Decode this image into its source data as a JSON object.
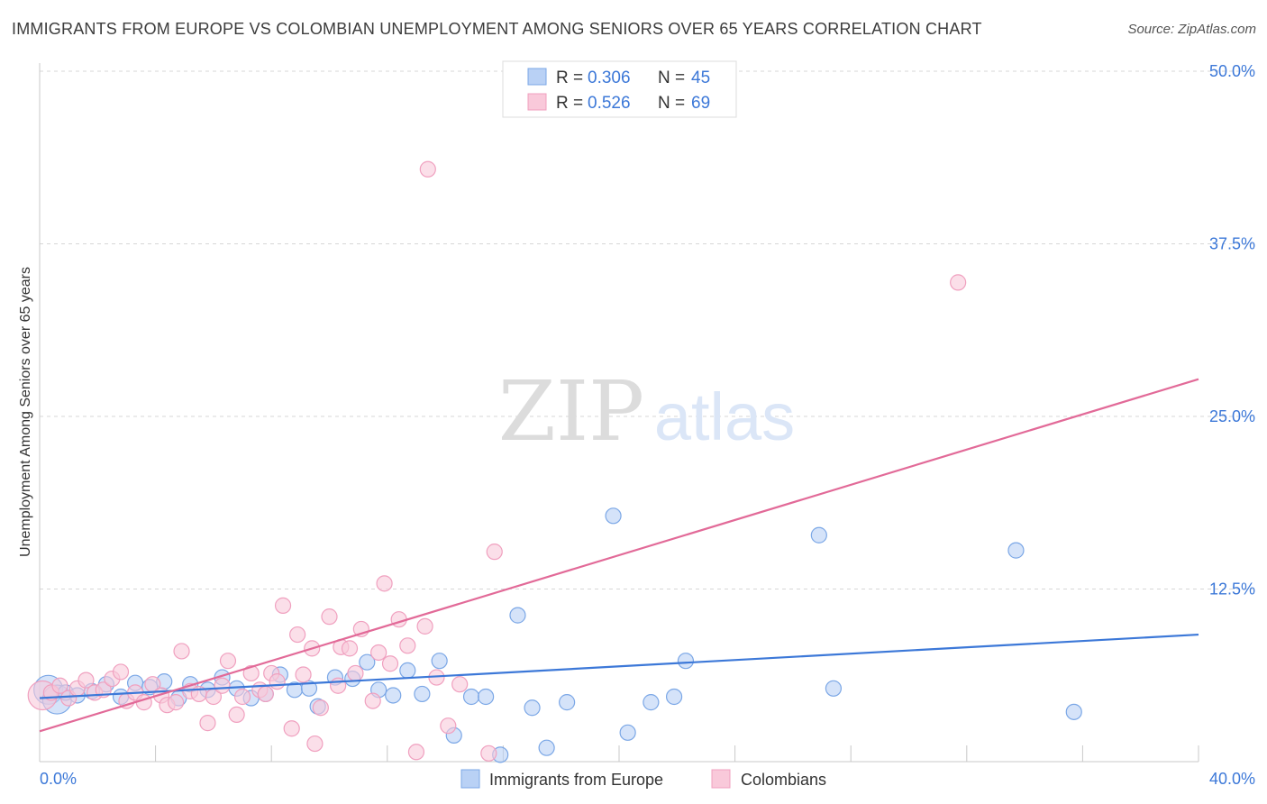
{
  "header": {
    "title": "IMMIGRANTS FROM EUROPE VS COLOMBIAN UNEMPLOYMENT AMONG SENIORS OVER 65 YEARS CORRELATION CHART",
    "source": "Source: ZipAtlas.com"
  },
  "watermark": {
    "zip": "ZIP",
    "atlas": "atlas"
  },
  "chart_data": {
    "type": "scatter",
    "title": "IMMIGRANTS FROM EUROPE VS COLOMBIAN UNEMPLOYMENT AMONG SENIORS OVER 65 YEARS CORRELATION CHART",
    "xlabel": "",
    "ylabel": "Unemployment Among Seniors over 65 years",
    "xlim": [
      0,
      40
    ],
    "ylim": [
      0,
      51
    ],
    "x_tick_labels": [
      {
        "value": 0,
        "label": "0.0%"
      },
      {
        "value": 40,
        "label": "40.0%"
      }
    ],
    "y_tick_labels": [
      {
        "value": 12.5,
        "label": "12.5%"
      },
      {
        "value": 25,
        "label": "25.0%"
      },
      {
        "value": 37.5,
        "label": "37.5%"
      },
      {
        "value": 50,
        "label": "50.0%"
      }
    ],
    "grid": true,
    "legend": {
      "position": "top-center",
      "r_label": "R =",
      "n_label": "N =",
      "entries": [
        {
          "r": "0.306",
          "n": "45"
        },
        {
          "r": "0.526",
          "n": "69"
        }
      ]
    },
    "series": [
      {
        "name": "Immigrants from Europe",
        "color": "#7ba7e6",
        "fill": "#b9d1f5",
        "line_color": "#3c78d8",
        "trend": {
          "x": [
            0,
            40
          ],
          "y": [
            4.6,
            9.2
          ]
        },
        "points": [
          {
            "x": 0.3,
            "y": 5.2,
            "s": "lg"
          },
          {
            "x": 0.6,
            "y": 4.5,
            "s": "lg"
          },
          {
            "x": 0.9,
            "y": 5.0
          },
          {
            "x": 1.3,
            "y": 4.8
          },
          {
            "x": 1.8,
            "y": 5.1
          },
          {
            "x": 2.3,
            "y": 5.6
          },
          {
            "x": 2.8,
            "y": 4.7
          },
          {
            "x": 3.3,
            "y": 5.7
          },
          {
            "x": 3.8,
            "y": 5.4
          },
          {
            "x": 4.3,
            "y": 5.8
          },
          {
            "x": 4.8,
            "y": 4.6
          },
          {
            "x": 5.2,
            "y": 5.6
          },
          {
            "x": 5.8,
            "y": 5.2
          },
          {
            "x": 6.3,
            "y": 6.1
          },
          {
            "x": 6.8,
            "y": 5.3
          },
          {
            "x": 7.3,
            "y": 4.6
          },
          {
            "x": 7.8,
            "y": 4.9
          },
          {
            "x": 8.3,
            "y": 6.3
          },
          {
            "x": 8.8,
            "y": 5.2
          },
          {
            "x": 9.3,
            "y": 5.3
          },
          {
            "x": 9.6,
            "y": 4.0
          },
          {
            "x": 10.2,
            "y": 6.1
          },
          {
            "x": 10.8,
            "y": 6.0
          },
          {
            "x": 11.3,
            "y": 7.2
          },
          {
            "x": 11.7,
            "y": 5.2
          },
          {
            "x": 12.2,
            "y": 4.8
          },
          {
            "x": 12.7,
            "y": 6.6
          },
          {
            "x": 13.2,
            "y": 4.9
          },
          {
            "x": 13.8,
            "y": 7.3
          },
          {
            "x": 14.3,
            "y": 1.9
          },
          {
            "x": 14.9,
            "y": 4.7
          },
          {
            "x": 15.4,
            "y": 4.7
          },
          {
            "x": 15.9,
            "y": 0.5
          },
          {
            "x": 16.5,
            "y": 10.6
          },
          {
            "x": 17.0,
            "y": 3.9
          },
          {
            "x": 17.5,
            "y": 1.0
          },
          {
            "x": 18.2,
            "y": 4.3
          },
          {
            "x": 19.8,
            "y": 17.8
          },
          {
            "x": 20.3,
            "y": 2.1
          },
          {
            "x": 21.1,
            "y": 4.3
          },
          {
            "x": 21.9,
            "y": 4.7
          },
          {
            "x": 22.3,
            "y": 7.3
          },
          {
            "x": 26.9,
            "y": 16.4
          },
          {
            "x": 27.4,
            "y": 5.3
          },
          {
            "x": 33.7,
            "y": 15.3
          },
          {
            "x": 35.7,
            "y": 3.6
          }
        ]
      },
      {
        "name": "Colombians",
        "color": "#f0a0bf",
        "fill": "#f9c9da",
        "line_color": "#e26a98",
        "trend": {
          "x": [
            0,
            40
          ],
          "y": [
            2.2,
            27.7
          ]
        },
        "points": [
          {
            "x": 0.1,
            "y": 4.8,
            "s": "lg"
          },
          {
            "x": 0.4,
            "y": 5.0
          },
          {
            "x": 0.7,
            "y": 5.5
          },
          {
            "x": 1.0,
            "y": 4.6
          },
          {
            "x": 1.3,
            "y": 5.3
          },
          {
            "x": 1.6,
            "y": 5.9
          },
          {
            "x": 1.9,
            "y": 5.0
          },
          {
            "x": 2.2,
            "y": 5.2
          },
          {
            "x": 2.5,
            "y": 6.0
          },
          {
            "x": 2.8,
            "y": 6.5
          },
          {
            "x": 3.0,
            "y": 4.4
          },
          {
            "x": 3.3,
            "y": 5.0
          },
          {
            "x": 3.6,
            "y": 4.3
          },
          {
            "x": 3.9,
            "y": 5.6
          },
          {
            "x": 4.2,
            "y": 4.8
          },
          {
            "x": 4.4,
            "y": 4.1
          },
          {
            "x": 4.7,
            "y": 4.3
          },
          {
            "x": 4.9,
            "y": 8.0
          },
          {
            "x": 5.2,
            "y": 5.1
          },
          {
            "x": 5.5,
            "y": 4.9
          },
          {
            "x": 5.8,
            "y": 2.8
          },
          {
            "x": 6.0,
            "y": 4.7
          },
          {
            "x": 6.3,
            "y": 5.5
          },
          {
            "x": 6.5,
            "y": 7.3
          },
          {
            "x": 6.8,
            "y": 3.4
          },
          {
            "x": 7.0,
            "y": 4.7
          },
          {
            "x": 7.3,
            "y": 6.4
          },
          {
            "x": 7.6,
            "y": 5.2
          },
          {
            "x": 7.8,
            "y": 4.9
          },
          {
            "x": 8.0,
            "y": 6.4
          },
          {
            "x": 8.2,
            "y": 5.8
          },
          {
            "x": 8.4,
            "y": 11.3
          },
          {
            "x": 8.7,
            "y": 2.4
          },
          {
            "x": 8.9,
            "y": 9.2
          },
          {
            "x": 9.1,
            "y": 6.3
          },
          {
            "x": 9.4,
            "y": 8.2
          },
          {
            "x": 9.5,
            "y": 1.3
          },
          {
            "x": 9.7,
            "y": 3.9
          },
          {
            "x": 10.0,
            "y": 10.5
          },
          {
            "x": 10.3,
            "y": 5.5
          },
          {
            "x": 10.4,
            "y": 8.3
          },
          {
            "x": 10.7,
            "y": 8.2
          },
          {
            "x": 10.9,
            "y": 6.4
          },
          {
            "x": 11.1,
            "y": 9.6
          },
          {
            "x": 11.5,
            "y": 4.4
          },
          {
            "x": 11.7,
            "y": 7.9
          },
          {
            "x": 11.9,
            "y": 12.9
          },
          {
            "x": 12.1,
            "y": 7.1
          },
          {
            "x": 12.4,
            "y": 10.3
          },
          {
            "x": 12.7,
            "y": 8.4
          },
          {
            "x": 13.0,
            "y": 0.7
          },
          {
            "x": 13.3,
            "y": 9.8
          },
          {
            "x": 13.4,
            "y": 42.9
          },
          {
            "x": 13.7,
            "y": 6.1
          },
          {
            "x": 14.1,
            "y": 2.6
          },
          {
            "x": 14.5,
            "y": 5.6
          },
          {
            "x": 15.5,
            "y": 0.6
          },
          {
            "x": 15.7,
            "y": 15.2
          },
          {
            "x": 31.7,
            "y": 34.7
          }
        ]
      }
    ]
  }
}
